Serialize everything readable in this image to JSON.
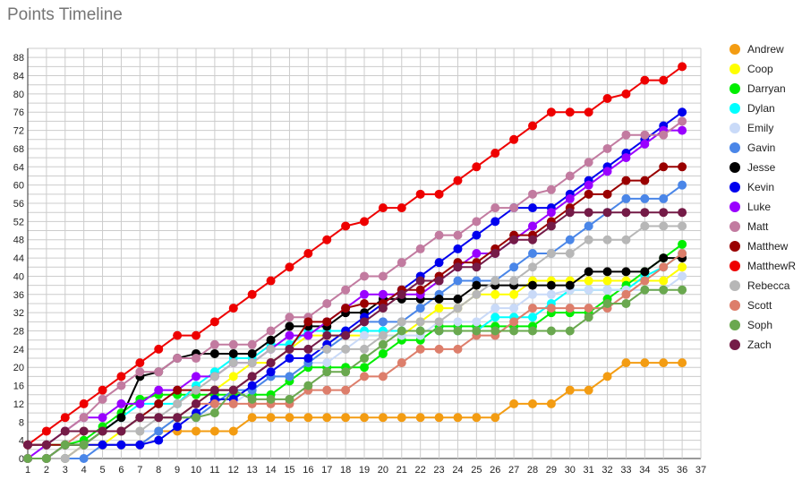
{
  "chart_data": {
    "type": "line",
    "title": "Points Timeline",
    "xlabel": "",
    "ylabel": "",
    "x": [
      1,
      2,
      3,
      4,
      5,
      6,
      7,
      8,
      9,
      10,
      11,
      12,
      13,
      14,
      15,
      16,
      17,
      18,
      19,
      20,
      21,
      22,
      23,
      24,
      25,
      26,
      27,
      28,
      29,
      30,
      31,
      32,
      33,
      34,
      35,
      36
    ],
    "x_ticks": [
      1,
      2,
      3,
      4,
      5,
      6,
      7,
      8,
      9,
      10,
      11,
      12,
      13,
      14,
      15,
      16,
      17,
      18,
      19,
      20,
      21,
      22,
      23,
      24,
      25,
      26,
      27,
      28,
      29,
      30,
      31,
      32,
      33,
      34,
      35,
      36,
      37
    ],
    "xlim": [
      1,
      37
    ],
    "ylim": [
      0,
      90
    ],
    "y_ticks": [
      0,
      4,
      8,
      12,
      16,
      20,
      24,
      28,
      32,
      36,
      40,
      44,
      48,
      52,
      56,
      60,
      64,
      68,
      72,
      76,
      80,
      84,
      88
    ],
    "grid": true,
    "legend_position": "right",
    "series": [
      {
        "name": "Andrew",
        "color": "#f39c12",
        "values": [
          0,
          0,
          0,
          3,
          3,
          3,
          3,
          6,
          6,
          6,
          6,
          6,
          9,
          9,
          9,
          9,
          9,
          9,
          9,
          9,
          9,
          9,
          9,
          9,
          9,
          9,
          12,
          12,
          12,
          15,
          15,
          18,
          21,
          21,
          21,
          21
        ]
      },
      {
        "name": "Coop",
        "color": "#ffff00",
        "values": [
          0,
          0,
          0,
          3,
          3,
          6,
          6,
          6,
          9,
          12,
          15,
          18,
          21,
          21,
          24,
          27,
          27,
          27,
          27,
          27,
          27,
          30,
          33,
          33,
          36,
          36,
          36,
          39,
          39,
          39,
          39,
          39,
          39,
          39,
          39,
          42
        ]
      },
      {
        "name": "Darryan",
        "color": "#00ee00",
        "values": [
          3,
          3,
          3,
          4,
          7,
          10,
          13,
          14,
          14,
          14,
          14,
          14,
          14,
          14,
          17,
          20,
          20,
          20,
          20,
          23,
          26,
          26,
          29,
          29,
          29,
          29,
          29,
          29,
          32,
          32,
          32,
          35,
          38,
          41,
          44,
          47
        ]
      },
      {
        "name": "Dylan",
        "color": "#00ffff",
        "values": [
          0,
          0,
          3,
          3,
          6,
          9,
          12,
          12,
          12,
          16,
          19,
          22,
          22,
          25,
          25,
          28,
          28,
          28,
          28,
          28,
          28,
          28,
          28,
          28,
          28,
          31,
          31,
          31,
          34,
          37,
          37,
          37,
          37,
          40,
          42,
          45
        ]
      },
      {
        "name": "Emily",
        "color": "#c9daf8",
        "values": [
          0,
          0,
          3,
          3,
          6,
          6,
          6,
          6,
          9,
          9,
          12,
          12,
          15,
          18,
          18,
          21,
          21,
          24,
          27,
          27,
          27,
          27,
          30,
          30,
          30,
          33,
          33,
          36,
          36,
          37,
          37,
          37,
          37,
          37,
          37,
          40
        ]
      },
      {
        "name": "Gavin",
        "color": "#4a86e8",
        "values": [
          0,
          0,
          0,
          0,
          3,
          3,
          3,
          6,
          9,
          9,
          12,
          15,
          15,
          18,
          18,
          21,
          24,
          27,
          30,
          30,
          30,
          33,
          36,
          39,
          39,
          39,
          42,
          45,
          45,
          48,
          51,
          54,
          57,
          57,
          57,
          60
        ]
      },
      {
        "name": "Jesse",
        "color": "#000000",
        "values": [
          0,
          0,
          3,
          3,
          6,
          9,
          18,
          19,
          22,
          23,
          23,
          23,
          23,
          26,
          29,
          29,
          29,
          32,
          32,
          35,
          35,
          35,
          35,
          35,
          38,
          38,
          38,
          38,
          38,
          38,
          41,
          41,
          41,
          41,
          44,
          44
        ]
      },
      {
        "name": "Kevin",
        "color": "#0000ee",
        "values": [
          0,
          0,
          3,
          3,
          3,
          3,
          3,
          4,
          7,
          10,
          13,
          13,
          16,
          19,
          22,
          22,
          25,
          28,
          31,
          34,
          37,
          40,
          43,
          46,
          49,
          52,
          55,
          55,
          55,
          58,
          61,
          64,
          67,
          70,
          73,
          76
        ]
      },
      {
        "name": "Luke",
        "color": "#9900ff",
        "values": [
          0,
          3,
          6,
          9,
          9,
          12,
          12,
          15,
          15,
          18,
          18,
          21,
          21,
          24,
          27,
          27,
          30,
          33,
          36,
          36,
          36,
          36,
          39,
          42,
          45,
          45,
          48,
          51,
          54,
          57,
          60,
          63,
          66,
          69,
          72,
          72
        ]
      },
      {
        "name": "Matt",
        "color": "#c27ba0",
        "values": [
          3,
          3,
          6,
          9,
          13,
          16,
          19,
          19,
          22,
          22,
          25,
          25,
          25,
          28,
          31,
          31,
          34,
          37,
          40,
          40,
          43,
          46,
          49,
          49,
          52,
          55,
          55,
          58,
          59,
          62,
          65,
          68,
          71,
          71,
          71,
          74
        ]
      },
      {
        "name": "Matthew",
        "color": "#990000",
        "values": [
          3,
          3,
          3,
          3,
          6,
          6,
          9,
          12,
          15,
          15,
          15,
          15,
          18,
          21,
          24,
          30,
          30,
          33,
          34,
          34,
          37,
          37,
          40,
          43,
          43,
          46,
          49,
          49,
          52,
          55,
          58,
          58,
          61,
          61,
          64,
          64
        ]
      },
      {
        "name": "MatthewR",
        "color": "#ee0000",
        "values": [
          3,
          6,
          9,
          12,
          15,
          18,
          21,
          24,
          27,
          27,
          30,
          33,
          36,
          39,
          42,
          45,
          48,
          51,
          52,
          55,
          55,
          58,
          58,
          61,
          64,
          67,
          70,
          73,
          76,
          76,
          76,
          79,
          80,
          83,
          83,
          86
        ]
      },
      {
        "name": "Rebecca",
        "color": "#b7b7b7",
        "values": [
          0,
          0,
          0,
          3,
          6,
          6,
          6,
          9,
          12,
          15,
          18,
          21,
          21,
          24,
          24,
          24,
          24,
          24,
          24,
          27,
          30,
          30,
          30,
          33,
          36,
          39,
          39,
          42,
          45,
          45,
          48,
          48,
          48,
          51,
          51,
          51
        ]
      },
      {
        "name": "Scott",
        "color": "#dd7e6b",
        "values": [
          0,
          0,
          3,
          6,
          6,
          6,
          9,
          9,
          9,
          12,
          12,
          12,
          12,
          12,
          12,
          15,
          15,
          15,
          18,
          18,
          21,
          24,
          24,
          24,
          27,
          27,
          30,
          33,
          33,
          33,
          33,
          33,
          36,
          39,
          42,
          45
        ]
      },
      {
        "name": "Soph",
        "color": "#6aa84f",
        "values": [
          0,
          0,
          3,
          3,
          6,
          6,
          9,
          9,
          9,
          9,
          10,
          15,
          13,
          13,
          13,
          16,
          19,
          19,
          22,
          25,
          28,
          28,
          28,
          28,
          28,
          28,
          28,
          28,
          28,
          28,
          31,
          34,
          34,
          37,
          37,
          37
        ]
      },
      {
        "name": "Zach",
        "color": "#741b47",
        "values": [
          3,
          3,
          6,
          6,
          6,
          6,
          9,
          9,
          9,
          12,
          15,
          15,
          18,
          21,
          24,
          24,
          27,
          27,
          30,
          33,
          36,
          39,
          39,
          42,
          42,
          45,
          48,
          48,
          51,
          54,
          54,
          54,
          54,
          54,
          54,
          54
        ]
      }
    ]
  }
}
